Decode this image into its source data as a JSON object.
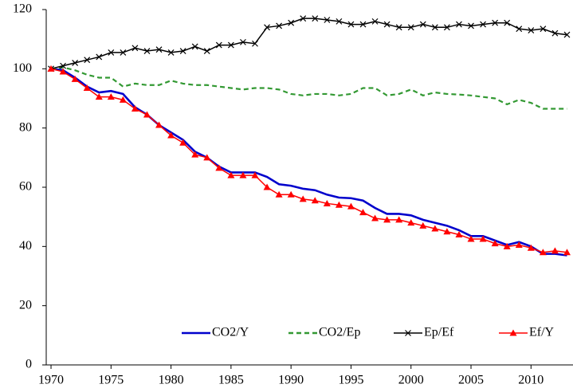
{
  "chart_data": {
    "type": "line",
    "x": [
      1970,
      1971,
      1972,
      1973,
      1974,
      1975,
      1976,
      1977,
      1978,
      1979,
      1980,
      1981,
      1982,
      1983,
      1984,
      1985,
      1986,
      1987,
      1988,
      1989,
      1990,
      1991,
      1992,
      1993,
      1994,
      1995,
      1996,
      1997,
      1998,
      1999,
      2000,
      2001,
      2002,
      2003,
      2004,
      2005,
      2006,
      2007,
      2008,
      2009,
      2010,
      2011,
      2012,
      2013
    ],
    "xlim": [
      1969.6,
      2013.5
    ],
    "xticks": [
      1970,
      1975,
      1980,
      1985,
      1990,
      1995,
      2000,
      2005,
      2010
    ],
    "ylim": [
      0,
      120
    ],
    "yticks": [
      0,
      20,
      40,
      60,
      80,
      100,
      120
    ],
    "grid": false,
    "legend": "bottom-right",
    "series": [
      {
        "name": "CO2/Y",
        "color": "#0000cc",
        "line_style": "solid",
        "marker": "none",
        "values": [
          100,
          99.5,
          97,
          94,
          92,
          92.5,
          91.5,
          87,
          84.5,
          81,
          78.5,
          76,
          72,
          70,
          67,
          65,
          65,
          65,
          63.5,
          61,
          60.5,
          59.5,
          59,
          57.5,
          56.5,
          56.3,
          55.5,
          53,
          51,
          51,
          50.5,
          49,
          48,
          47,
          45.5,
          43.5,
          43.5,
          42,
          40.5,
          41.5,
          40,
          37.5,
          37.5,
          37
        ]
      },
      {
        "name": "CO2/Ep",
        "color": "#339933",
        "line_style": "dashed",
        "marker": "none",
        "values": [
          100,
          100.5,
          99.5,
          98,
          97,
          97,
          94,
          95,
          94.5,
          94.5,
          96,
          95,
          94.5,
          94.5,
          94,
          93.5,
          93,
          93.5,
          93.5,
          93,
          91.5,
          91,
          91.5,
          91.5,
          91,
          91.5,
          93.5,
          93.5,
          91,
          91.5,
          93,
          91,
          92,
          91.5,
          91.3,
          91,
          90.5,
          90,
          88,
          89.5,
          88.5,
          86.5,
          86.5,
          86.5
        ]
      },
      {
        "name": "Ep/Ef",
        "color": "#000000",
        "line_style": "solid",
        "marker": "x",
        "values": [
          100,
          101,
          102,
          103,
          104,
          105.5,
          105.5,
          107,
          106,
          106.5,
          105.5,
          106,
          107.5,
          106,
          108,
          108,
          109,
          108.5,
          114,
          114.5,
          115.5,
          117,
          117,
          116.5,
          116,
          115,
          115,
          116,
          115,
          114,
          114,
          115,
          114,
          114,
          115,
          114.5,
          115,
          115.5,
          115.5,
          113.5,
          113,
          113.5,
          112,
          111.5
        ]
      },
      {
        "name": "Ef/Y",
        "color": "#ff0000",
        "line_style": "solid",
        "marker": "triangle",
        "values": [
          100,
          99,
          96.5,
          93.5,
          90.5,
          90.5,
          89.5,
          86.5,
          84.5,
          81,
          77.5,
          75,
          71,
          70,
          66.5,
          64,
          64,
          64,
          60,
          57.5,
          57.5,
          56,
          55.5,
          54.5,
          54,
          53.5,
          51.5,
          49.5,
          49,
          49,
          48,
          47,
          46,
          45,
          44,
          42.5,
          42.5,
          41,
          40,
          40.5,
          39.5,
          38,
          38.5,
          38
        ]
      }
    ]
  }
}
